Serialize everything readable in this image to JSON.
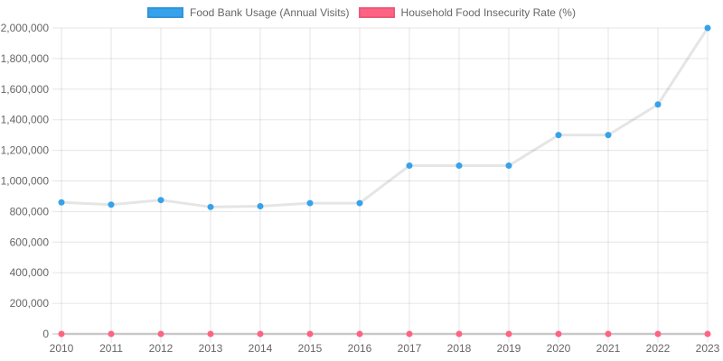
{
  "chart_data": {
    "type": "line",
    "title": "",
    "categories": [
      "2010",
      "2011",
      "2012",
      "2013",
      "2014",
      "2015",
      "2016",
      "2017",
      "2018",
      "2019",
      "2020",
      "2021",
      "2022",
      "2023"
    ],
    "series": [
      {
        "name": "Food Bank Usage (Annual Visits)",
        "color": "#36a2eb",
        "values": [
          860000,
          845000,
          875000,
          830000,
          835000,
          855000,
          855000,
          1100000,
          1100000,
          1100000,
          1300000,
          1300000,
          1500000,
          2000000
        ]
      },
      {
        "name": "Household Food Insecurity Rate (%)",
        "color": "#ff6384",
        "values": [
          0,
          0,
          0,
          0,
          0,
          0,
          0,
          0,
          0,
          0,
          0,
          0,
          0,
          0
        ],
        "note": "percentage series renders flat at the zero line on the shared 0-2,000,000 axis"
      }
    ],
    "xlabel": "",
    "ylabel": "",
    "ylim": [
      0,
      2000000
    ],
    "y_tick_step": 200000,
    "y_ticks": [
      "0",
      "200,000",
      "400,000",
      "600,000",
      "800,000",
      "1,000,000",
      "1,200,000",
      "1,400,000",
      "1,600,000",
      "1,800,000",
      "2,000,000"
    ],
    "grid": true,
    "legend_position": "top",
    "style": {
      "line_color": "rgba(0,0,0,0.1)",
      "line_width": 3,
      "point_radius": 3.5,
      "grid_color": "rgba(0,0,0,0.1)",
      "zero_line_color": "rgba(0,0,0,0.25)",
      "tick_text_color": "#666666",
      "background": "#ffffff"
    }
  }
}
